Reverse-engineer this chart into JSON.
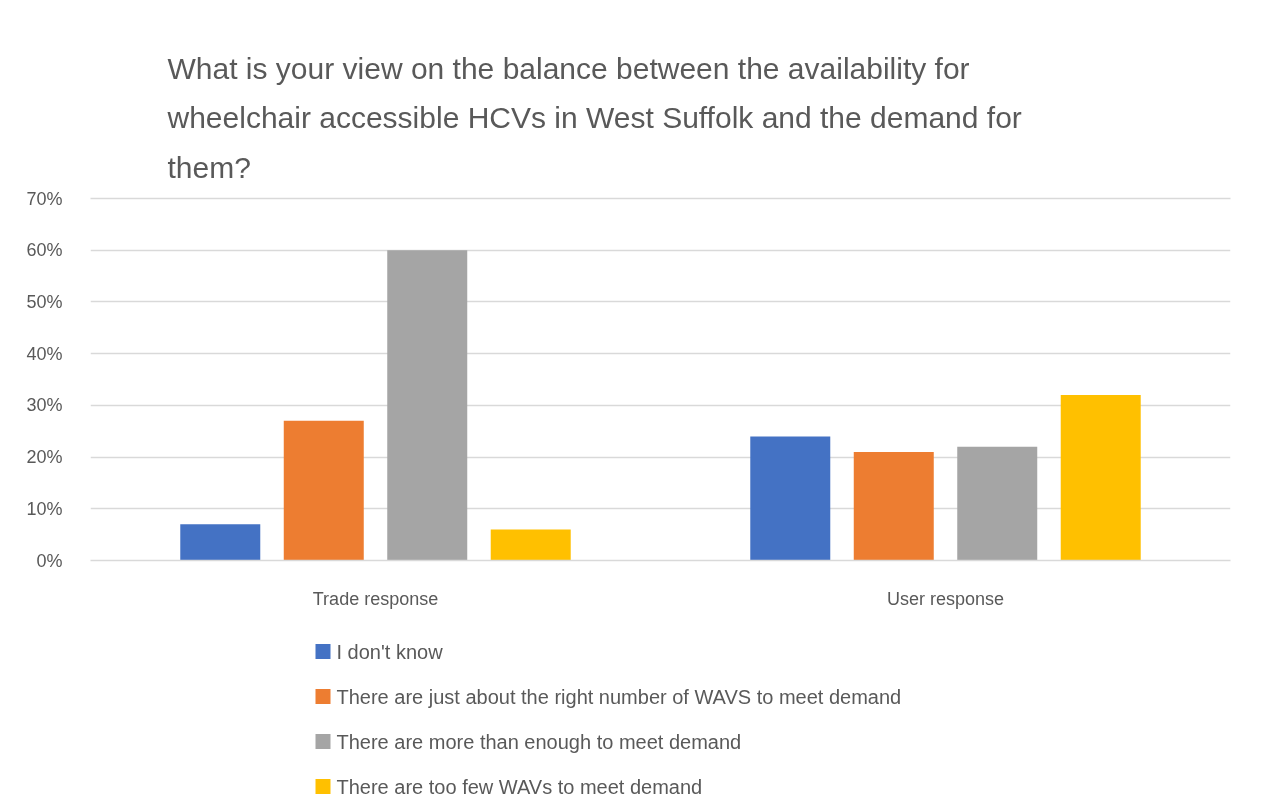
{
  "chart_data": {
    "type": "bar",
    "title": "What is your view on the balance between the availability for wheelchair accessible HCVs in West Suffolk and the demand for them?",
    "categories": [
      "Trade response",
      "User response"
    ],
    "series": [
      {
        "name": "I don't know",
        "color": "#4472c4",
        "values": [
          7,
          24
        ]
      },
      {
        "name": "There are just about the right number of WAVS to meet demand",
        "color": "#ed7d31",
        "values": [
          27,
          21
        ]
      },
      {
        "name": "There are more than enough to meet demand",
        "color": "#a5a5a5",
        "values": [
          60,
          22
        ]
      },
      {
        "name": "There are too few WAVs to meet demand",
        "color": "#ffc000",
        "values": [
          6,
          32
        ]
      }
    ],
    "ylim": [
      0,
      70
    ],
    "yticks": [
      {
        "value": 0,
        "label": "0%"
      },
      {
        "value": 10,
        "label": "10%"
      },
      {
        "value": 20,
        "label": "20%"
      },
      {
        "value": 30,
        "label": "30%"
      },
      {
        "value": 40,
        "label": "40%"
      },
      {
        "value": 50,
        "label": "50%"
      },
      {
        "value": 60,
        "label": "60%"
      },
      {
        "value": 70,
        "label": "70%"
      }
    ],
    "grid": "y",
    "legend": "bottom"
  }
}
